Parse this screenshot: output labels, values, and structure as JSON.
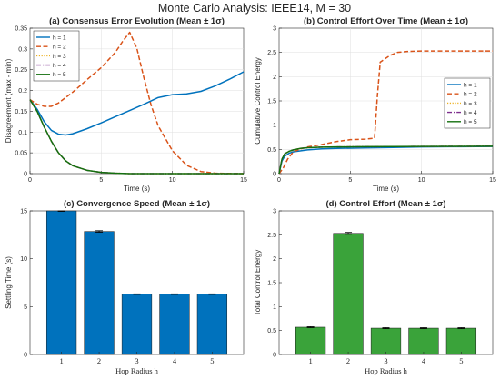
{
  "figure": {
    "title": "Monte Carlo Analysis: IEEE14, M = 30"
  },
  "colors": {
    "h1": "#0072BD",
    "h2": "#D95319",
    "h3": "#EDB120",
    "h4": "#7E2F8E",
    "h5": "#14700F",
    "bar_blue": "#0072BD",
    "bar_green": "#3AA33A"
  },
  "chart_data": [
    {
      "id": "a",
      "type": "line",
      "title": "(a) Consensus Error Evolution (Mean ± 1σ)",
      "xlabel": "Time (s)",
      "ylabel": "Disagreement (max - min)",
      "xlim": [
        0,
        15
      ],
      "ylim": [
        0,
        0.35
      ],
      "xticks": [
        0,
        5,
        10,
        15
      ],
      "yticks": [
        0,
        0.05,
        0.1,
        0.15,
        0.2,
        0.25,
        0.3,
        0.35
      ],
      "ytick_labels": [
        "0",
        "0.05",
        "0.1",
        "0.15",
        "0.2",
        "0.25",
        "0.3",
        "0.35"
      ],
      "grid": true,
      "legend": "top-left",
      "series": [
        {
          "name": "h = 1",
          "style": "solid",
          "color_key": "h1",
          "x": [
            0,
            0.5,
            1,
            1.5,
            2,
            2.5,
            3,
            4,
            5,
            6,
            7,
            8,
            9,
            10,
            11,
            12,
            13,
            14,
            15
          ],
          "y": [
            0.178,
            0.155,
            0.125,
            0.104,
            0.095,
            0.093,
            0.096,
            0.108,
            0.122,
            0.137,
            0.152,
            0.167,
            0.183,
            0.19,
            0.192,
            0.198,
            0.211,
            0.227,
            0.245
          ]
        },
        {
          "name": "h = 2",
          "style": "dashed",
          "color_key": "h2",
          "x": [
            0,
            0.5,
            1,
            1.5,
            2,
            3,
            4,
            5,
            6,
            6.5,
            7,
            7.5,
            8,
            8.5,
            9,
            10,
            11,
            12,
            13,
            15
          ],
          "y": [
            0.178,
            0.167,
            0.162,
            0.162,
            0.17,
            0.196,
            0.226,
            0.255,
            0.292,
            0.318,
            0.34,
            0.302,
            0.23,
            0.165,
            0.115,
            0.055,
            0.02,
            0.005,
            0.001,
            0.0
          ]
        },
        {
          "name": "h = 3",
          "style": "dotted",
          "color_key": "h3",
          "x": [
            0,
            0.5,
            1,
            1.5,
            2,
            2.5,
            3,
            4,
            5,
            6,
            7,
            9,
            12,
            15
          ],
          "y": [
            0.178,
            0.15,
            0.112,
            0.078,
            0.05,
            0.031,
            0.019,
            0.008,
            0.003,
            0.001,
            0.0,
            0.0,
            0.0,
            0.0
          ]
        },
        {
          "name": "h = 4",
          "style": "dashdot",
          "color_key": "h4",
          "x": [
            0,
            0.5,
            1,
            1.5,
            2,
            2.5,
            3,
            4,
            5,
            6,
            7,
            9,
            12,
            15
          ],
          "y": [
            0.178,
            0.15,
            0.112,
            0.078,
            0.05,
            0.031,
            0.019,
            0.008,
            0.003,
            0.001,
            0.0,
            0.0,
            0.0,
            0.0
          ]
        },
        {
          "name": "h = 5",
          "style": "solid",
          "color_key": "h5",
          "x": [
            0,
            0.5,
            1,
            1.5,
            2,
            2.5,
            3,
            4,
            5,
            6,
            7,
            9,
            12,
            15
          ],
          "y": [
            0.178,
            0.15,
            0.112,
            0.078,
            0.05,
            0.031,
            0.019,
            0.008,
            0.003,
            0.001,
            0.0,
            0.0,
            0.0,
            0.0
          ]
        }
      ]
    },
    {
      "id": "b",
      "type": "line",
      "title": "(b) Control Effort Over Time (Mean ± 1σ)",
      "xlabel": "Time (s)",
      "ylabel": "Cumulative Control Energy",
      "xlim": [
        0,
        15
      ],
      "ylim": [
        0,
        3
      ],
      "xticks": [
        0,
        5,
        10,
        15
      ],
      "yticks": [
        0,
        0.5,
        1,
        1.5,
        2,
        2.5,
        3
      ],
      "ytick_labels": [
        "0",
        "0.5",
        "1",
        "1.5",
        "2",
        "2.5",
        "3"
      ],
      "grid": true,
      "legend": "right",
      "series": [
        {
          "name": "h = 1",
          "style": "solid",
          "color_key": "h1",
          "x": [
            0,
            0.2,
            0.4,
            0.7,
            1,
            2,
            3,
            4,
            6,
            8,
            10,
            12,
            15
          ],
          "y": [
            0,
            0.26,
            0.36,
            0.42,
            0.45,
            0.49,
            0.51,
            0.52,
            0.53,
            0.54,
            0.55,
            0.555,
            0.56
          ]
        },
        {
          "name": "h = 2",
          "style": "dashed",
          "color_key": "h2",
          "x": [
            0,
            0.3,
            0.6,
            1,
            1.5,
            2,
            3,
            4,
            5,
            6,
            6.7,
            6.9,
            7.1,
            7.4,
            7.8,
            8.3,
            9,
            10,
            12,
            15
          ],
          "y": [
            0,
            0.12,
            0.3,
            0.45,
            0.51,
            0.55,
            0.6,
            0.66,
            0.7,
            0.71,
            0.73,
            1.6,
            2.3,
            2.36,
            2.44,
            2.5,
            2.52,
            2.53,
            2.53,
            2.53
          ]
        },
        {
          "name": "h = 3",
          "style": "dotted",
          "color_key": "h3",
          "x": [
            0,
            0.2,
            0.4,
            0.7,
            1,
            1.5,
            2,
            3,
            4,
            6,
            10,
            15
          ],
          "y": [
            0,
            0.3,
            0.41,
            0.46,
            0.49,
            0.52,
            0.535,
            0.545,
            0.55,
            0.555,
            0.56,
            0.565
          ]
        },
        {
          "name": "h = 4",
          "style": "dashdot",
          "color_key": "h4",
          "x": [
            0,
            0.2,
            0.4,
            0.7,
            1,
            1.5,
            2,
            3,
            4,
            6,
            10,
            15
          ],
          "y": [
            0,
            0.3,
            0.41,
            0.46,
            0.49,
            0.52,
            0.535,
            0.545,
            0.55,
            0.555,
            0.56,
            0.565
          ]
        },
        {
          "name": "h = 5",
          "style": "solid",
          "color_key": "h5",
          "x": [
            0,
            0.2,
            0.4,
            0.7,
            1,
            1.5,
            2,
            3,
            4,
            6,
            10,
            15
          ],
          "y": [
            0,
            0.3,
            0.41,
            0.46,
            0.49,
            0.52,
            0.535,
            0.545,
            0.55,
            0.555,
            0.56,
            0.565
          ]
        }
      ]
    },
    {
      "id": "c",
      "type": "bar",
      "title": "(c) Convergence Speed (Mean ± 1σ)",
      "xlabel": "Hop Radius h",
      "ylabel": "Settling Time (s)",
      "categories": [
        "1",
        "2",
        "3",
        "4",
        "5"
      ],
      "values": [
        15.0,
        12.85,
        6.3,
        6.3,
        6.3
      ],
      "error": [
        0.05,
        0.08,
        0.03,
        0.03,
        0.03
      ],
      "ylim": [
        0,
        15
      ],
      "yticks": [
        0,
        5,
        10,
        15
      ],
      "ytick_labels": [
        "0",
        "5",
        "10",
        "15"
      ],
      "grid": false,
      "color_key": "bar_blue"
    },
    {
      "id": "d",
      "type": "bar",
      "title": "(d) Control Effort (Mean ± 1σ)",
      "xlabel": "Hop Radius h",
      "ylabel": "Total Control Energy",
      "categories": [
        "1",
        "2",
        "3",
        "4",
        "5"
      ],
      "values": [
        0.57,
        2.53,
        0.55,
        0.55,
        0.55
      ],
      "error": [
        0.01,
        0.02,
        0.01,
        0.01,
        0.01
      ],
      "ylim": [
        0,
        3
      ],
      "yticks": [
        0,
        0.5,
        1,
        1.5,
        2,
        2.5,
        3
      ],
      "ytick_labels": [
        "0",
        "0.5",
        "1",
        "1.5",
        "2",
        "2.5",
        "3"
      ],
      "grid": false,
      "color_key": "bar_green"
    }
  ]
}
